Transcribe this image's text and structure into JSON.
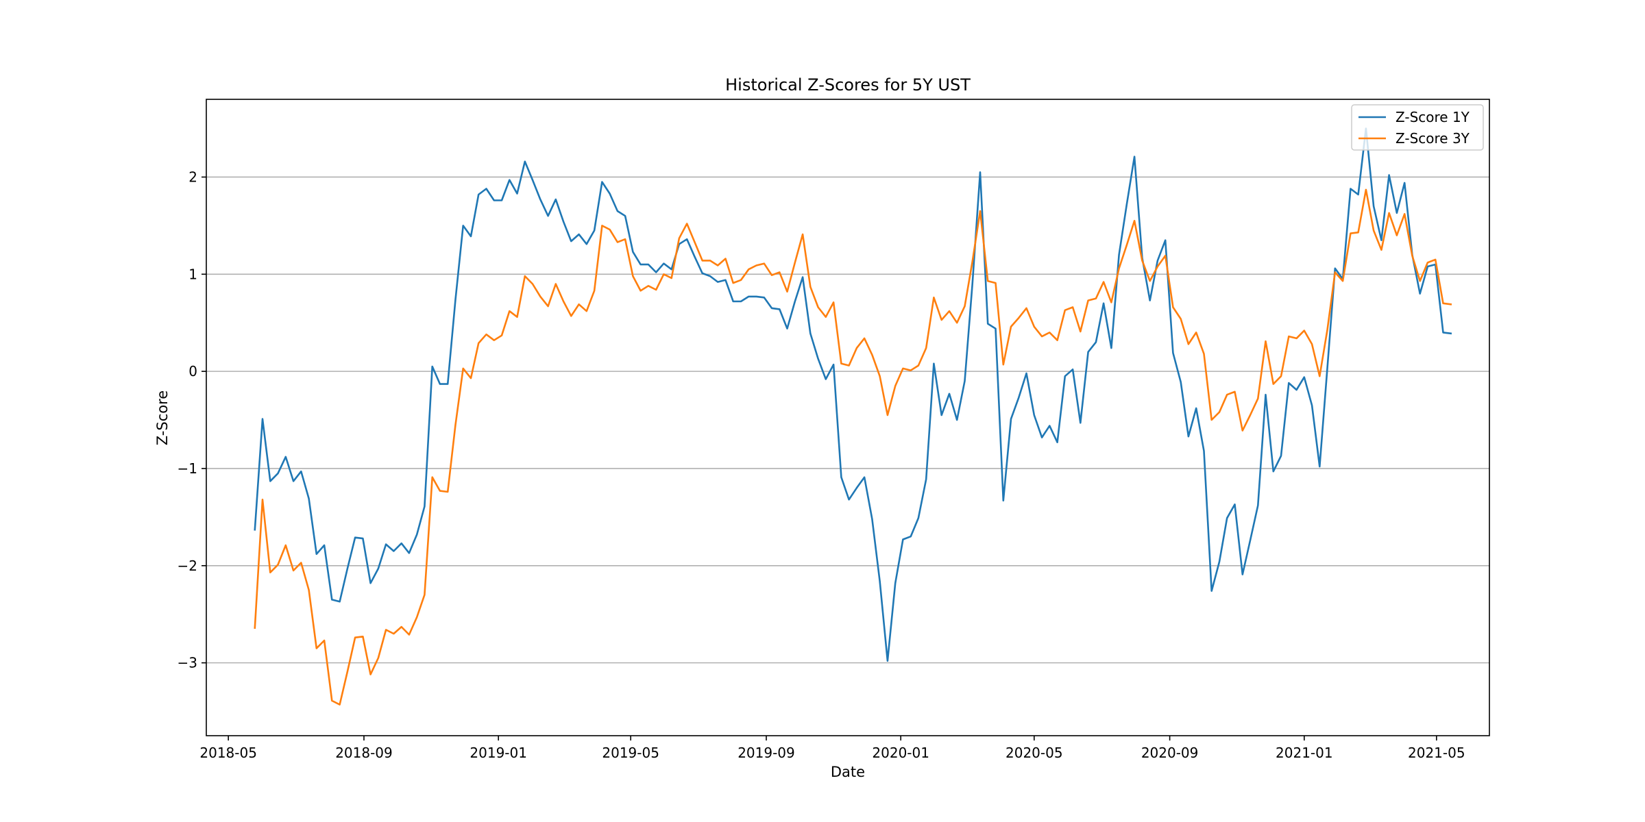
{
  "chart_data": {
    "type": "line",
    "title": "Historical Z-Scores for 5Y UST",
    "xlabel": "Date",
    "ylabel": "Z-Score",
    "xlim": [
      "2018-04-11",
      "2021-06-18"
    ],
    "ylim": [
      -3.75,
      2.8
    ],
    "grid": "horizontal",
    "legend_position": "top-right",
    "x_ticks": [
      "2018-05-01",
      "2018-09-01",
      "2019-01-01",
      "2019-05-01",
      "2019-09-01",
      "2020-01-01",
      "2020-05-01",
      "2020-09-01",
      "2021-01-01",
      "2021-05-01"
    ],
    "x_tick_labels": [
      "2018-05",
      "2018-09",
      "2019-01",
      "2019-05",
      "2019-09",
      "2020-01",
      "2020-05",
      "2020-09",
      "2021-01",
      "2021-05"
    ],
    "y_ticks": [
      -3,
      -2,
      -1,
      0,
      1,
      2
    ],
    "y_tick_labels": [
      "−3",
      "−2",
      "−1",
      "0",
      "1",
      "2"
    ],
    "x": [
      "2018-05-25",
      "2018-06-01",
      "2018-06-08",
      "2018-06-15",
      "2018-06-22",
      "2018-06-29",
      "2018-07-06",
      "2018-07-13",
      "2018-07-20",
      "2018-07-27",
      "2018-08-03",
      "2018-08-10",
      "2018-08-17",
      "2018-08-24",
      "2018-08-31",
      "2018-09-07",
      "2018-09-14",
      "2018-09-21",
      "2018-09-28",
      "2018-10-05",
      "2018-10-12",
      "2018-10-19",
      "2018-10-26",
      "2018-11-02",
      "2018-11-09",
      "2018-11-16",
      "2018-11-23",
      "2018-11-30",
      "2018-12-07",
      "2018-12-14",
      "2018-12-21",
      "2018-12-28",
      "2019-01-04",
      "2019-01-11",
      "2019-01-18",
      "2019-01-25",
      "2019-02-01",
      "2019-02-08",
      "2019-02-15",
      "2019-02-22",
      "2019-03-01",
      "2019-03-08",
      "2019-03-15",
      "2019-03-22",
      "2019-03-29",
      "2019-04-05",
      "2019-04-12",
      "2019-04-19",
      "2019-04-26",
      "2019-05-03",
      "2019-05-10",
      "2019-05-17",
      "2019-05-24",
      "2019-05-31",
      "2019-06-07",
      "2019-06-14",
      "2019-06-21",
      "2019-06-28",
      "2019-07-05",
      "2019-07-12",
      "2019-07-19",
      "2019-07-26",
      "2019-08-02",
      "2019-08-09",
      "2019-08-16",
      "2019-08-23",
      "2019-08-30",
      "2019-09-06",
      "2019-09-13",
      "2019-09-20",
      "2019-09-27",
      "2019-10-04",
      "2019-10-11",
      "2019-10-18",
      "2019-10-25",
      "2019-11-01",
      "2019-11-08",
      "2019-11-15",
      "2019-11-22",
      "2019-11-29",
      "2019-12-06",
      "2019-12-13",
      "2019-12-20",
      "2019-12-27",
      "2020-01-03",
      "2020-01-10",
      "2020-01-17",
      "2020-01-24",
      "2020-01-31",
      "2020-02-07",
      "2020-02-14",
      "2020-02-21",
      "2020-02-28",
      "2020-03-06",
      "2020-03-13",
      "2020-03-20",
      "2020-03-27",
      "2020-04-03",
      "2020-04-10",
      "2020-04-17",
      "2020-04-24",
      "2020-05-01",
      "2020-05-08",
      "2020-05-15",
      "2020-05-22",
      "2020-05-29",
      "2020-06-05",
      "2020-06-12",
      "2020-06-19",
      "2020-06-26",
      "2020-07-03",
      "2020-07-10",
      "2020-07-17",
      "2020-07-24",
      "2020-07-31",
      "2020-08-07",
      "2020-08-14",
      "2020-08-21",
      "2020-08-28",
      "2020-09-04",
      "2020-09-11",
      "2020-09-18",
      "2020-09-25",
      "2020-10-02",
      "2020-10-09",
      "2020-10-16",
      "2020-10-23",
      "2020-10-30",
      "2020-11-06",
      "2020-11-13",
      "2020-11-20",
      "2020-11-27",
      "2020-12-04",
      "2020-12-11",
      "2020-12-18",
      "2020-12-25",
      "2021-01-01",
      "2021-01-08",
      "2021-01-15",
      "2021-01-22",
      "2021-01-29",
      "2021-02-05",
      "2021-02-12",
      "2021-02-19",
      "2021-02-26",
      "2021-03-05",
      "2021-03-12",
      "2021-03-19",
      "2021-03-26",
      "2021-04-02",
      "2021-04-09",
      "2021-04-16",
      "2021-04-23",
      "2021-04-30",
      "2021-05-07",
      "2021-05-14"
    ],
    "series": [
      {
        "name": "Z-Score 1Y",
        "color": "#1f77b4",
        "values": [
          -1.63,
          -0.49,
          -1.13,
          -1.05,
          -0.88,
          -1.13,
          -1.03,
          -1.31,
          -1.88,
          -1.79,
          -2.35,
          -2.37,
          -2.03,
          -1.71,
          -1.72,
          -2.18,
          -2.03,
          -1.78,
          -1.85,
          -1.77,
          -1.87,
          -1.68,
          -1.39,
          0.05,
          -0.13,
          -0.13,
          0.74,
          1.5,
          1.39,
          1.82,
          1.88,
          1.76,
          1.76,
          1.97,
          1.83,
          2.16,
          1.97,
          1.77,
          1.6,
          1.77,
          1.54,
          1.34,
          1.41,
          1.31,
          1.45,
          1.95,
          1.83,
          1.65,
          1.6,
          1.23,
          1.1,
          1.1,
          1.02,
          1.11,
          1.05,
          1.31,
          1.36,
          1.18,
          1.01,
          0.98,
          0.92,
          0.94,
          0.72,
          0.72,
          0.77,
          0.77,
          0.76,
          0.65,
          0.64,
          0.44,
          0.72,
          0.97,
          0.39,
          0.13,
          -0.08,
          0.07,
          -1.09,
          -1.32,
          -1.2,
          -1.09,
          -1.52,
          -2.16,
          -2.98,
          -2.18,
          -1.73,
          -1.7,
          -1.51,
          -1.11,
          0.08,
          -0.45,
          -0.23,
          -0.5,
          -0.1,
          0.9,
          2.05,
          0.49,
          0.44,
          -1.33,
          -0.49,
          -0.27,
          -0.02,
          -0.45,
          -0.68,
          -0.56,
          -0.73,
          -0.05,
          0.02,
          -0.53,
          0.2,
          0.3,
          0.7,
          0.24,
          1.2,
          1.72,
          2.21,
          1.17,
          0.73,
          1.14,
          1.35,
          0.19,
          -0.11,
          -0.67,
          -0.38,
          -0.82,
          -2.26,
          -1.96,
          -1.51,
          -1.37,
          -2.09,
          -1.74,
          -1.38,
          -0.24,
          -1.03,
          -0.87,
          -0.12,
          -0.19,
          -0.06,
          -0.35,
          -0.98,
          0.04,
          1.06,
          0.95,
          1.88,
          1.82,
          2.5,
          1.7,
          1.35,
          2.02,
          1.63,
          1.94,
          1.2,
          0.8,
          1.08,
          1.1,
          0.4,
          0.39
        ]
      },
      {
        "name": "Z-Score 3Y",
        "color": "#ff7f0e",
        "values": [
          -2.64,
          -1.32,
          -2.07,
          -1.99,
          -1.79,
          -2.05,
          -1.97,
          -2.25,
          -2.85,
          -2.77,
          -3.39,
          -3.43,
          -3.09,
          -2.74,
          -2.73,
          -3.12,
          -2.95,
          -2.66,
          -2.7,
          -2.63,
          -2.71,
          -2.53,
          -2.3,
          -1.09,
          -1.23,
          -1.24,
          -0.55,
          0.03,
          -0.07,
          0.29,
          0.38,
          0.32,
          0.37,
          0.62,
          0.56,
          0.98,
          0.9,
          0.77,
          0.67,
          0.9,
          0.72,
          0.57,
          0.69,
          0.62,
          0.83,
          1.5,
          1.46,
          1.33,
          1.36,
          0.98,
          0.83,
          0.88,
          0.84,
          1.0,
          0.96,
          1.37,
          1.52,
          1.33,
          1.14,
          1.14,
          1.09,
          1.16,
          0.91,
          0.94,
          1.05,
          1.09,
          1.11,
          0.99,
          1.02,
          0.82,
          1.12,
          1.41,
          0.87,
          0.66,
          0.56,
          0.71,
          0.08,
          0.06,
          0.24,
          0.34,
          0.17,
          -0.05,
          -0.45,
          -0.15,
          0.03,
          0.01,
          0.06,
          0.24,
          0.76,
          0.53,
          0.62,
          0.5,
          0.67,
          1.13,
          1.65,
          0.93,
          0.91,
          0.07,
          0.46,
          0.55,
          0.65,
          0.46,
          0.36,
          0.4,
          0.32,
          0.63,
          0.66,
          0.41,
          0.73,
          0.75,
          0.92,
          0.71,
          1.06,
          1.3,
          1.55,
          1.14,
          0.93,
          1.08,
          1.19,
          0.66,
          0.54,
          0.28,
          0.4,
          0.18,
          -0.5,
          -0.42,
          -0.24,
          -0.21,
          -0.61,
          -0.45,
          -0.28,
          0.31,
          -0.13,
          -0.05,
          0.36,
          0.34,
          0.42,
          0.28,
          -0.05,
          0.43,
          1.02,
          0.93,
          1.42,
          1.43,
          1.87,
          1.45,
          1.25,
          1.63,
          1.4,
          1.62,
          1.19,
          0.93,
          1.12,
          1.15,
          0.7,
          0.69
        ]
      }
    ]
  }
}
